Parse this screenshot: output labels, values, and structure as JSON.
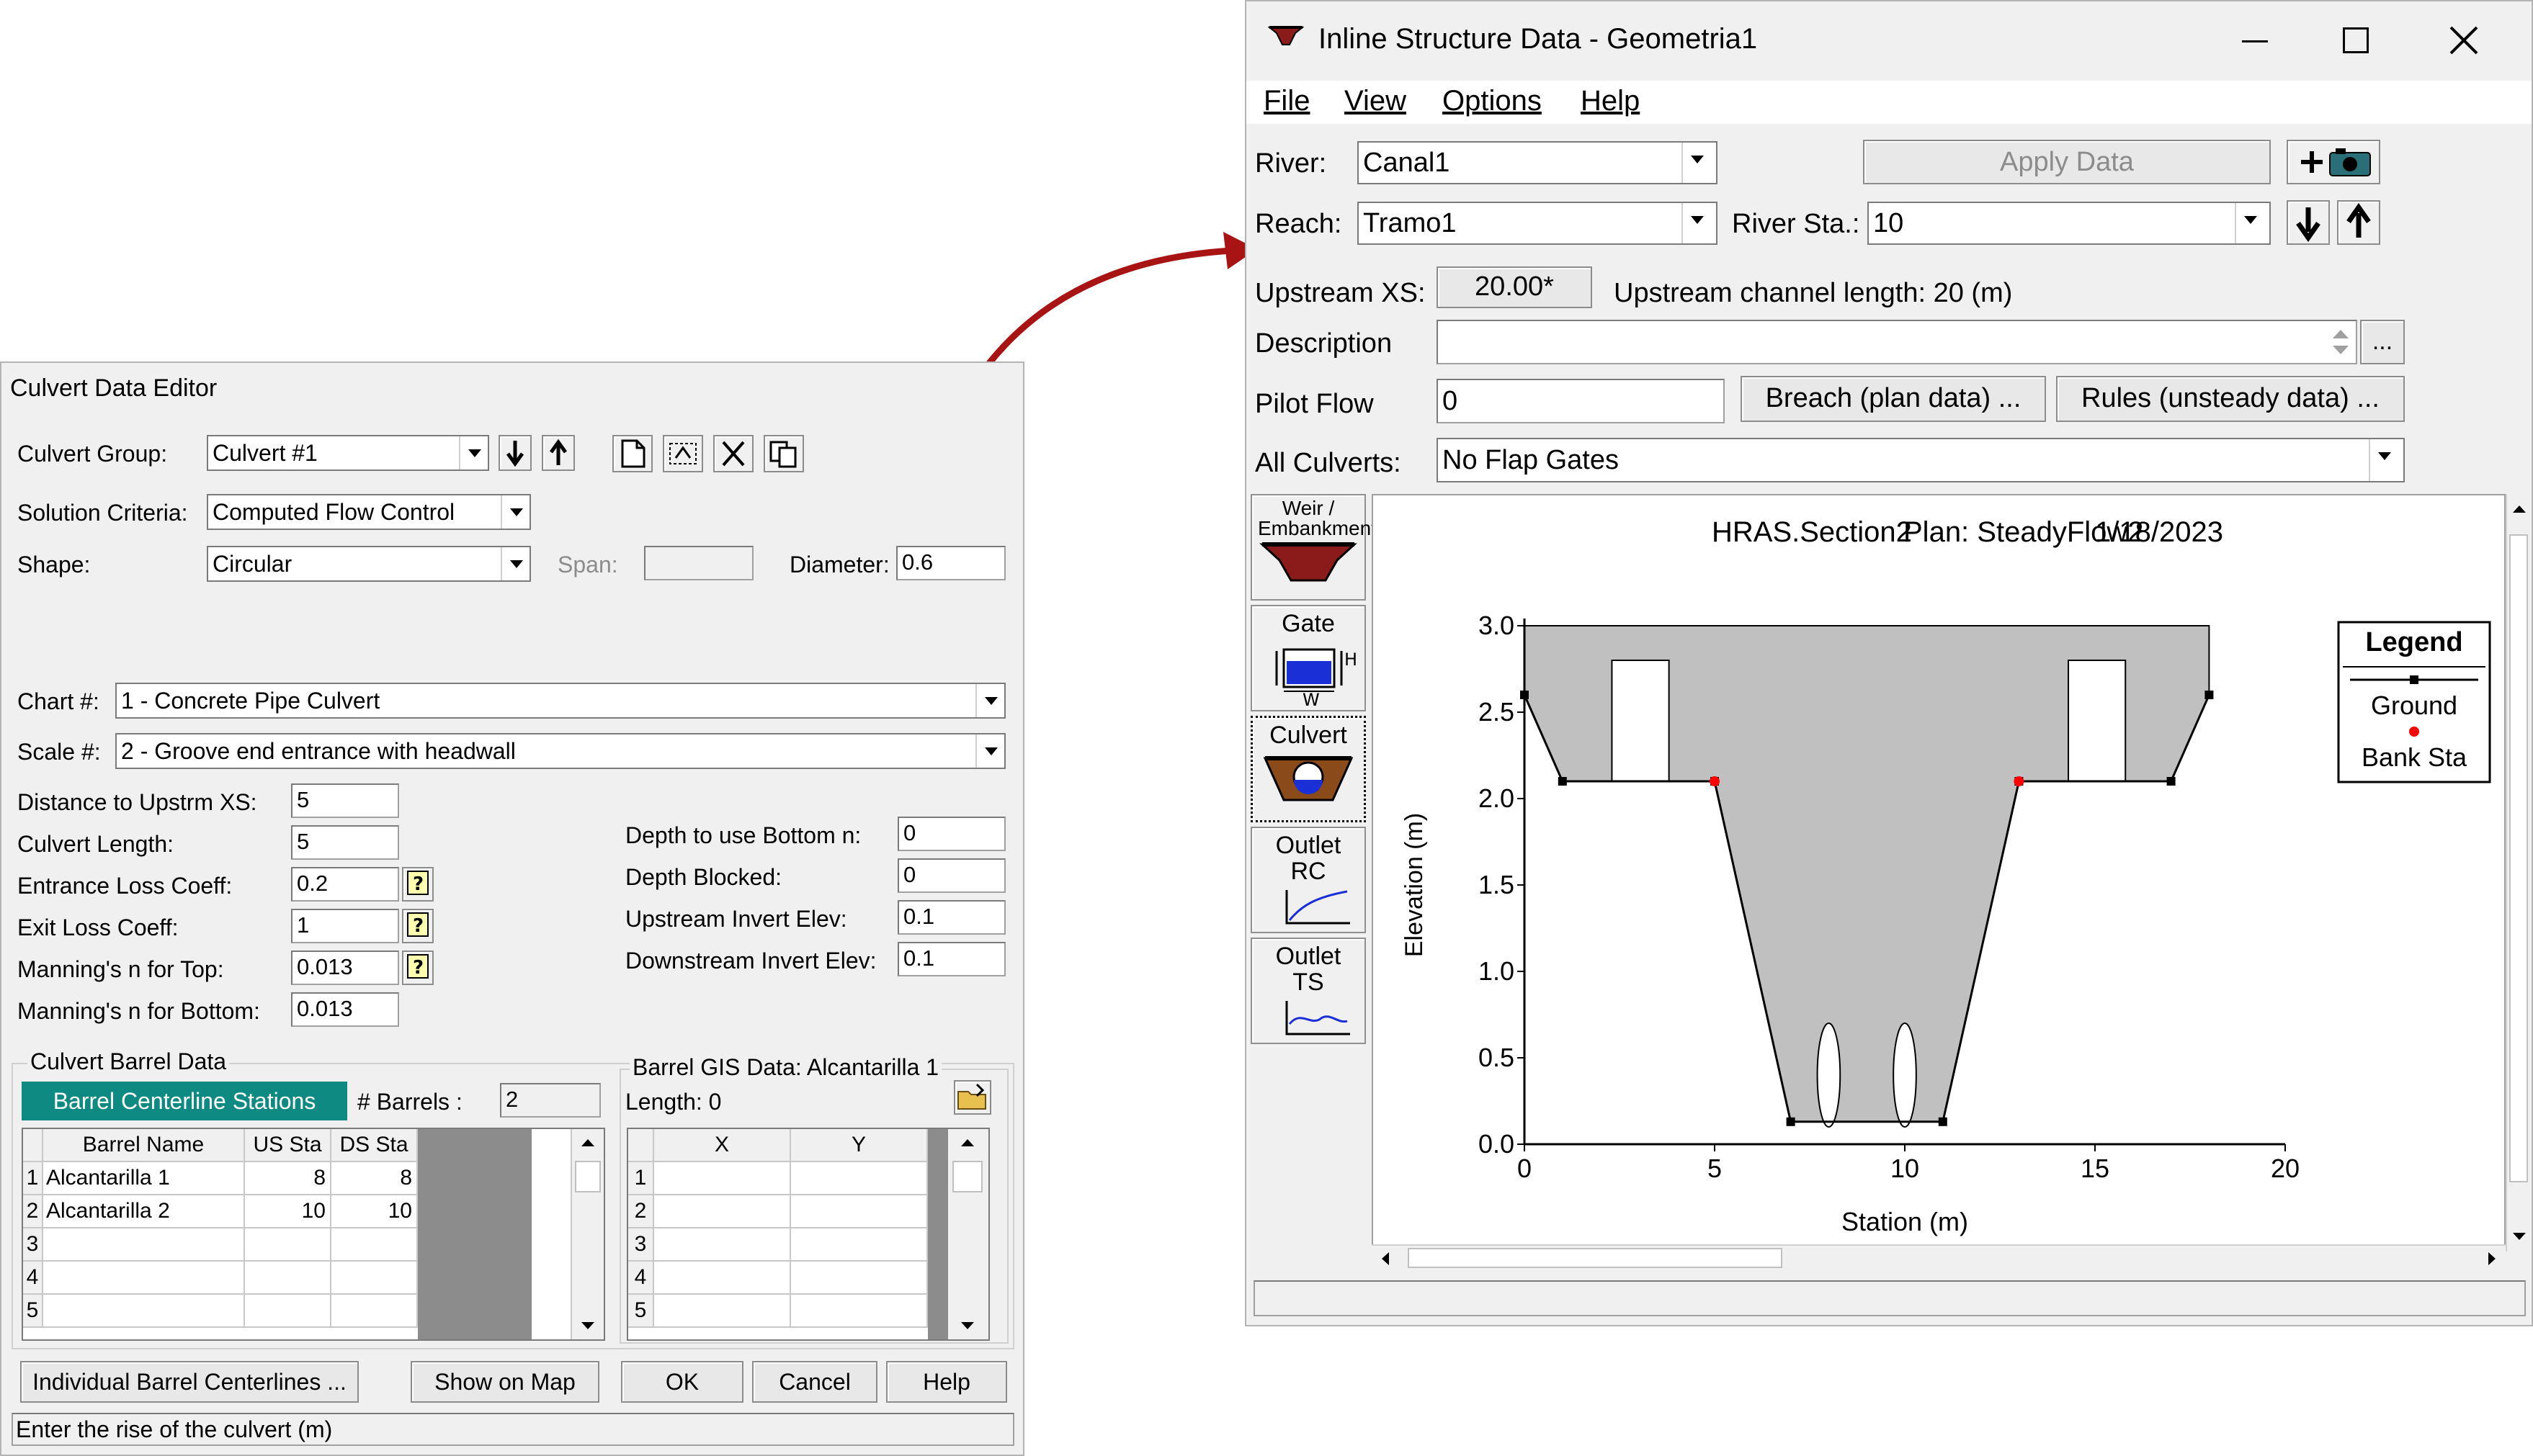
{
  "culvert": {
    "title": "Culvert Data Editor",
    "culvert_group_label": "Culvert Group:",
    "culvert_group": "Culvert #1",
    "solution_label": "Solution Criteria:",
    "solution": "Computed Flow Control",
    "shape_label": "Shape:",
    "shape": "Circular",
    "span_label": "Span:",
    "diameter_label": "Diameter:",
    "diameter": "0.6",
    "chart_label": "Chart #:",
    "chart": "1 - Concrete Pipe Culvert",
    "scale_label": "Scale #:",
    "scale": "2 - Groove end entrance with headwall",
    "left_fields": [
      {
        "label": "Distance to Upstrm XS:",
        "value": "5"
      },
      {
        "label": "Culvert Length:",
        "value": "5"
      },
      {
        "label": "Entrance Loss Coeff:",
        "value": "0.2"
      },
      {
        "label": "Exit Loss Coeff:",
        "value": "1"
      },
      {
        "label": "Manning's n for Top:",
        "value": "0.013"
      },
      {
        "label": "Manning's n for Bottom:",
        "value": "0.013"
      }
    ],
    "right_fields": [
      {
        "label": "Depth to use Bottom n:",
        "value": "0"
      },
      {
        "label": "Depth Blocked:",
        "value": "0"
      },
      {
        "label": "Upstream Invert Elev:",
        "value": "0.1"
      },
      {
        "label": "Downstream Invert Elev:",
        "value": "0.1"
      }
    ],
    "barrel_group": "Culvert Barrel Data",
    "barrel_stations_tab": "Barrel Centerline Stations",
    "barrels_label": "# Barrels :",
    "barrels": "2",
    "barrel_headers": [
      "Barrel Name",
      "US Sta",
      "DS Sta"
    ],
    "barrel_rows": [
      {
        "n": "1",
        "name": "Alcantarilla 1",
        "us": "8",
        "ds": "8"
      },
      {
        "n": "2",
        "name": "Alcantarilla 2",
        "us": "10",
        "ds": "10"
      },
      {
        "n": "3",
        "name": "",
        "us": "",
        "ds": ""
      },
      {
        "n": "4",
        "name": "",
        "us": "",
        "ds": ""
      },
      {
        "n": "5",
        "name": "",
        "us": "",
        "ds": ""
      }
    ],
    "gis_group": "Barrel GIS Data: Alcantarilla 1",
    "gis_length": "Length: 0",
    "gis_headers": [
      "X",
      "Y"
    ],
    "gis_rows": [
      "1",
      "2",
      "3",
      "4",
      "5"
    ],
    "buttons": {
      "individual": "Individual Barrel Centerlines ...",
      "show_map": "Show on Map",
      "ok": "OK",
      "cancel": "Cancel",
      "help": "Help"
    },
    "status": "Enter the rise of the culvert (m)"
  },
  "inline": {
    "title": "Inline Structure Data - Geometria1",
    "menu": [
      "File",
      "View",
      "Options",
      "Help"
    ],
    "river_label": "River:",
    "river": "Canal1",
    "apply_label": "Apply Data",
    "reach_label": "Reach:",
    "reach": "Tramo1",
    "river_sta_label": "River Sta.:",
    "river_sta": "10",
    "upstream_label": "Upstream XS:",
    "upstream_value": "20.00*",
    "upstream_text": "Upstream channel length: 20 (m)",
    "description_label": "Description",
    "pilot_label": "Pilot Flow",
    "pilot_value": "0",
    "breach_label": "Breach (plan data) ...",
    "rules_label": "Rules (unsteady data) ...",
    "all_culverts_label": "All Culverts:",
    "all_culverts": "No Flap Gates",
    "tools": {
      "weir": "Weir / Embankment",
      "gate": "Gate",
      "culvert": "Culvert",
      "outlet_rc": "Outlet RC",
      "outlet_ts": "Outlet TS"
    }
  },
  "chart_data": {
    "type": "line",
    "title_left": "HRAS.Section2",
    "title_plan": "Plan: SteadyFlow2",
    "title_date": "1/18/2023",
    "xlabel": "Station (m)",
    "ylabel": "Elevation (m)",
    "xlim": [
      0,
      20
    ],
    "ylim": [
      0,
      3
    ],
    "xticks": [
      "0",
      "5",
      "10",
      "15",
      "20"
    ],
    "yticks": [
      "0.0",
      "0.5",
      "1.0",
      "1.5",
      "2.0",
      "2.5",
      "3.0"
    ],
    "legend_title": "Legend",
    "legend_entries": [
      "Ground",
      "Bank Sta"
    ],
    "ground": [
      [
        0,
        2.6
      ],
      [
        1,
        2.1
      ],
      [
        5,
        2.1
      ],
      [
        7,
        0.13
      ],
      [
        11,
        0.13
      ],
      [
        13,
        2.1
      ],
      [
        17,
        2.1
      ],
      [
        18,
        2.6
      ]
    ],
    "bank_sta": [
      [
        5,
        2.1
      ],
      [
        13,
        2.1
      ]
    ],
    "deck": {
      "top": 3.0,
      "left_sta": 0,
      "right_sta": 18
    },
    "openings": [
      {
        "x1": 2.3,
        "x2": 3.8,
        "y1": 2.1,
        "y2": 2.8
      },
      {
        "x1": 14.3,
        "x2": 15.8,
        "y1": 2.1,
        "y2": 2.8
      }
    ],
    "culverts": [
      {
        "center": 8,
        "diameter": 0.6,
        "invert": 0.1
      },
      {
        "center": 10,
        "diameter": 0.6,
        "invert": 0.1
      }
    ],
    "colors": {
      "deck": "#c0c0c0",
      "ground": "#000000",
      "bank": "#ff0000"
    }
  },
  "arrow_color": "#a81414"
}
